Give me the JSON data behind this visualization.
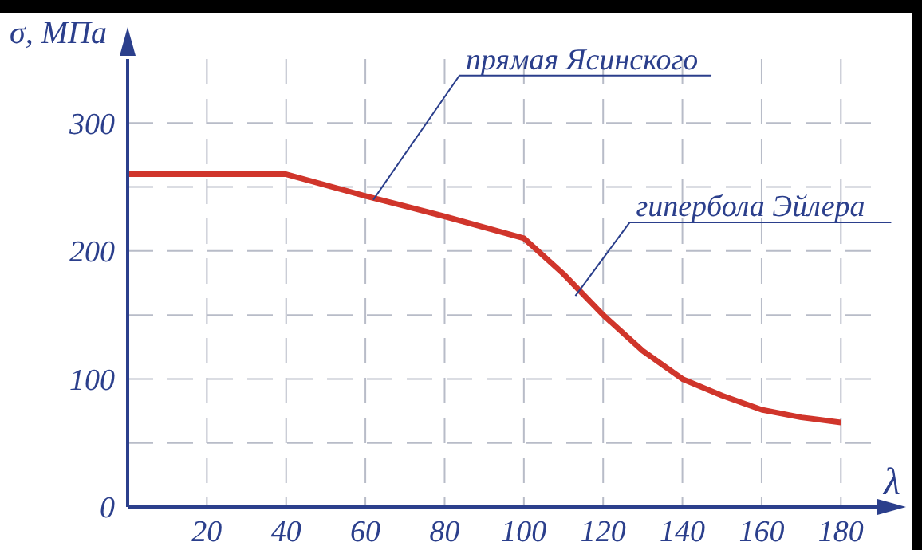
{
  "chart_data": {
    "type": "line",
    "xlabel": "λ",
    "ylabel": "σ, МПа",
    "x": [
      0,
      40,
      60,
      80,
      100,
      110,
      120,
      130,
      140,
      150,
      160,
      170,
      180
    ],
    "series": [
      {
        "color": "#d0352b",
        "values": [
          260,
          260,
          243,
          227,
          210,
          182,
          150,
          122,
          100,
          87,
          76,
          70,
          66
        ]
      }
    ],
    "xlim": [
      0,
      190
    ],
    "ylim": [
      0,
      350
    ],
    "xticks": [
      20,
      40,
      60,
      80,
      100,
      120,
      140,
      160,
      180
    ],
    "yticks": [
      0,
      {
        "value": 50,
        "label": null
      },
      100,
      {
        "value": 150,
        "label": null
      },
      200,
      {
        "value": 250,
        "label": null
      },
      300
    ],
    "grid": true,
    "marker": "none",
    "line_style": "solid",
    "annotations": [
      {
        "text": "прямая Ясинского",
        "x": 62,
        "y": 240
      },
      {
        "text": "гипербола Эйлера",
        "x": 113,
        "y": 165
      }
    ]
  }
}
